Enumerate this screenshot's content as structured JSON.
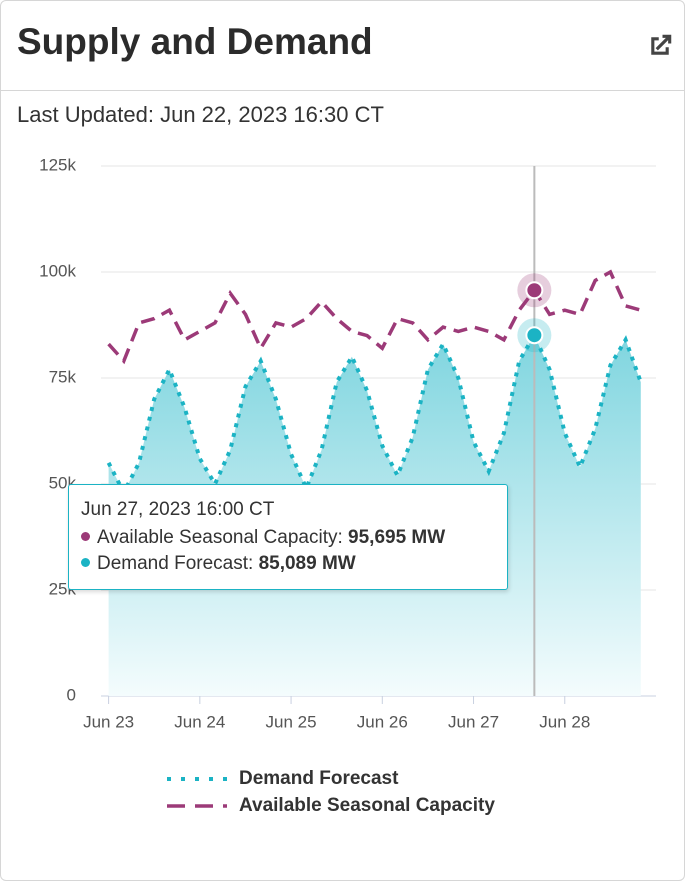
{
  "title": "Supply and Demand",
  "last_updated": "Last Updated: Jun 22, 2023 16:30 CT",
  "tooltip": {
    "title": "Jun 27, 2023 16:00 CT",
    "rows": [
      {
        "label": "Available Seasonal Capacity:",
        "value": "95,695 MW"
      },
      {
        "label": "Demand Forecast:",
        "value": "85,089 MW"
      }
    ]
  },
  "chart_data": {
    "type": "line",
    "x": [
      "2023-06-23T00:00",
      "2023-06-23T04:00",
      "2023-06-23T08:00",
      "2023-06-23T12:00",
      "2023-06-23T16:00",
      "2023-06-23T20:00",
      "2023-06-24T00:00",
      "2023-06-24T04:00",
      "2023-06-24T08:00",
      "2023-06-24T12:00",
      "2023-06-24T16:00",
      "2023-06-24T20:00",
      "2023-06-25T00:00",
      "2023-06-25T04:00",
      "2023-06-25T08:00",
      "2023-06-25T12:00",
      "2023-06-25T16:00",
      "2023-06-25T20:00",
      "2023-06-26T00:00",
      "2023-06-26T04:00",
      "2023-06-26T08:00",
      "2023-06-26T12:00",
      "2023-06-26T16:00",
      "2023-06-26T20:00",
      "2023-06-27T00:00",
      "2023-06-27T04:00",
      "2023-06-27T08:00",
      "2023-06-27T12:00",
      "2023-06-27T16:00",
      "2023-06-27T20:00",
      "2023-06-28T00:00",
      "2023-06-28T04:00",
      "2023-06-28T08:00",
      "2023-06-28T12:00",
      "2023-06-28T16:00",
      "2023-06-28T20:00"
    ],
    "series": [
      {
        "name": "Demand Forecast",
        "color": "#1bb3c4",
        "style": "dotted",
        "area": true,
        "values": [
          55000,
          48000,
          55000,
          70000,
          77000,
          68000,
          56000,
          50000,
          58000,
          73000,
          79000,
          70000,
          57000,
          49000,
          58000,
          74000,
          80000,
          72000,
          59000,
          52000,
          61000,
          77000,
          83000,
          75000,
          60000,
          53000,
          62000,
          79000,
          85089,
          77000,
          62000,
          54000,
          63000,
          78000,
          84000,
          74000
        ]
      },
      {
        "name": "Available Seasonal Capacity",
        "color": "#9c3a78",
        "style": "dashed",
        "values": [
          83000,
          79000,
          88000,
          89000,
          91000,
          84000,
          86000,
          88000,
          95000,
          90000,
          82000,
          88000,
          87000,
          89000,
          93000,
          89000,
          86000,
          85000,
          82000,
          89000,
          88000,
          84000,
          87000,
          86000,
          87000,
          86000,
          84000,
          91000,
          95695,
          90000,
          91000,
          90000,
          98000,
          100000,
          92000,
          91000
        ]
      }
    ],
    "xlim": [
      "2023-06-22T22:00",
      "2023-06-29T00:00"
    ],
    "xticks": [
      {
        "value": "2023-06-23T00:00",
        "label": "Jun 23"
      },
      {
        "value": "2023-06-24T00:00",
        "label": "Jun 24"
      },
      {
        "value": "2023-06-25T00:00",
        "label": "Jun 25"
      },
      {
        "value": "2023-06-26T00:00",
        "label": "Jun 26"
      },
      {
        "value": "2023-06-27T00:00",
        "label": "Jun 27"
      },
      {
        "value": "2023-06-28T00:00",
        "label": "Jun 28"
      }
    ],
    "ylim": [
      0,
      125000
    ],
    "yticks": [
      0,
      {
        "value": 25000,
        "label": "25k"
      },
      {
        "value": 50000,
        "label": "50k"
      },
      {
        "value": 75000,
        "label": "75k"
      },
      {
        "value": 100000,
        "label": "100k"
      },
      {
        "value": 125000,
        "label": "125k"
      }
    ],
    "grid": true,
    "crosshair_index": 28
  }
}
